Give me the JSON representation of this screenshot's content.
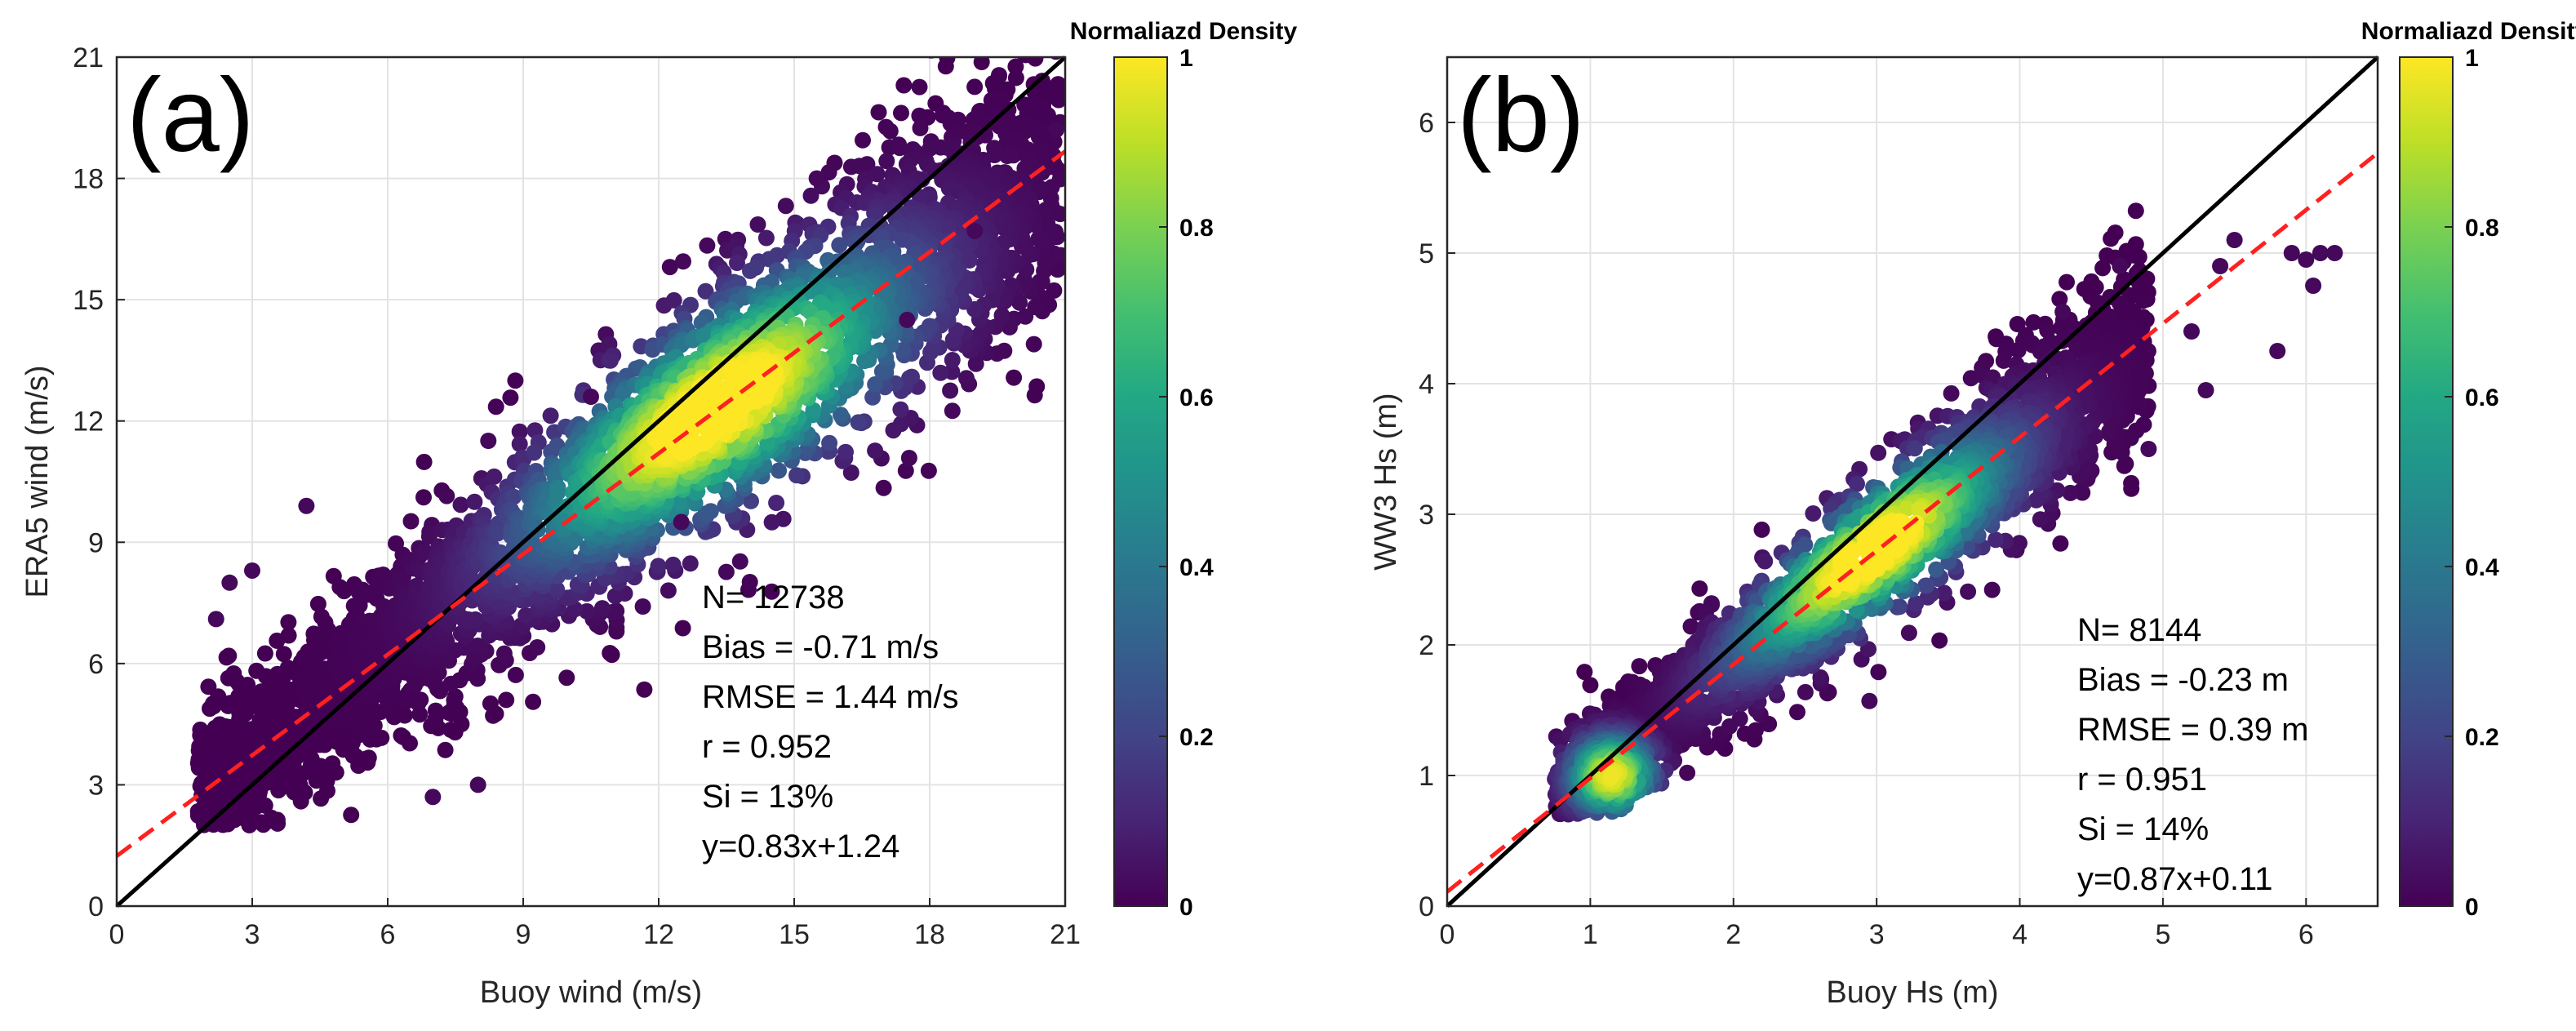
{
  "chart_data": [
    {
      "type": "scatter",
      "panel_label": "(a)",
      "xlabel": "Buoy wind (m/s)",
      "ylabel": "ERA5 wind (m/s)",
      "xlim": [
        0,
        21
      ],
      "ylim": [
        0,
        21
      ],
      "xticks": [
        "0",
        "3",
        "6",
        "9",
        "12",
        "15",
        "18",
        "21"
      ],
      "yticks": [
        "0",
        "3",
        "6",
        "9",
        "12",
        "15",
        "18",
        "21"
      ],
      "grid": true,
      "density_colormap": "viridis",
      "reference_line": {
        "slope": 1,
        "intercept": 0,
        "color": "#000000"
      },
      "fit_line": {
        "slope": 0.83,
        "intercept": 1.24,
        "color": "#ff2020",
        "style": "dashed"
      },
      "density_peak": [
        13.0,
        12.6
      ],
      "stats": [
        "N= 12738",
        "Bias = -0.71 m/s",
        "RMSE = 1.44 m/s",
        "r = 0.952",
        "Si = 13%",
        "y=0.83x+1.24"
      ],
      "colorbar": {
        "title": "Normaliazd Density",
        "ticks": [
          "0",
          "0.2",
          "0.4",
          "0.6",
          "0.8",
          "1"
        ],
        "range": [
          0,
          1
        ]
      }
    },
    {
      "type": "scatter",
      "panel_label": "(b)",
      "xlabel": "Buoy Hs (m)",
      "ylabel": "WW3 Hs (m)",
      "xlim": [
        0,
        6.5
      ],
      "ylim": [
        0,
        6.5
      ],
      "xticks": [
        "0",
        "1",
        "2",
        "3",
        "4",
        "5",
        "6"
      ],
      "yticks": [
        "0",
        "1",
        "2",
        "3",
        "4",
        "5",
        "6"
      ],
      "grid": true,
      "density_colormap": "viridis",
      "reference_line": {
        "slope": 1,
        "intercept": 0,
        "color": "#000000"
      },
      "fit_line": {
        "slope": 0.87,
        "intercept": 0.11,
        "color": "#ff2020",
        "style": "dashed"
      },
      "density_peak": [
        2.9,
        2.8
      ],
      "stats": [
        "N= 8144",
        "Bias = -0.23 m",
        "RMSE = 0.39 m",
        "r = 0.951",
        "Si = 14%",
        "y=0.87x+0.11"
      ],
      "colorbar": {
        "title": "Normaliazd Density",
        "ticks": [
          "0",
          "0.2",
          "0.4",
          "0.6",
          "0.8",
          "1"
        ],
        "range": [
          0,
          1
        ]
      }
    }
  ]
}
